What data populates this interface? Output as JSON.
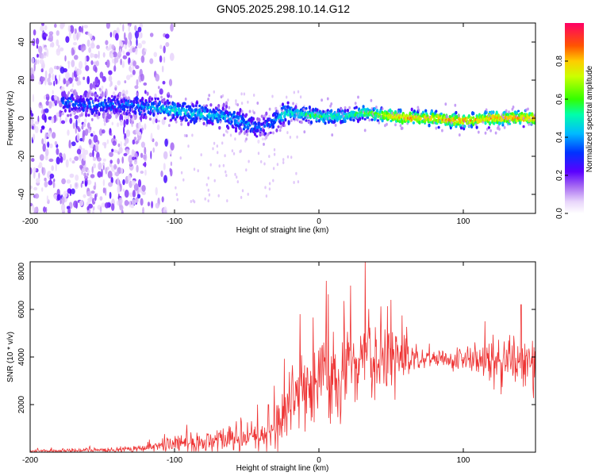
{
  "title": "GN05.2025.298.10.14.G12",
  "chart_data": [
    {
      "type": "heatmap",
      "name": "spectrogram",
      "title": "GN05.2025.298.10.14.G12",
      "xlabel": "Height of straight line (km)",
      "ylabel": "Frequency (Hz)",
      "xlim": [
        -200,
        150
      ],
      "ylim": [
        -50,
        50
      ],
      "xticks": [
        -200,
        -100,
        0,
        100
      ],
      "yticks": [
        -40,
        -20,
        0,
        20,
        40
      ],
      "colorbar": {
        "label": "Normalized spectral amplitude",
        "range": [
          0,
          1
        ],
        "ticks": [
          "0.0",
          "0.2",
          "0.4",
          "0.6",
          "0.8"
        ],
        "tick_values": [
          0.0,
          0.2,
          0.4,
          0.6,
          0.8
        ]
      },
      "ridge": {
        "x": [
          -175,
          -160,
          -140,
          -120,
          -110,
          -100,
          -90,
          -80,
          -70,
          -60,
          -50,
          -45,
          -40,
          -35,
          -30,
          -25,
          -20,
          -10,
          0,
          10,
          20,
          30,
          40,
          50,
          60,
          70,
          80,
          90,
          100,
          110,
          120,
          130,
          140,
          150
        ],
        "freq": [
          8,
          7,
          7,
          6,
          5,
          4,
          3,
          2,
          1,
          0,
          -3,
          -4,
          -5,
          -3,
          -1,
          2,
          3,
          2,
          1,
          1,
          1,
          3,
          2,
          1,
          0,
          0,
          0,
          -1,
          -1,
          -1,
          0,
          0,
          0,
          0
        ],
        "amplitude": [
          0.35,
          0.35,
          0.35,
          0.4,
          0.42,
          0.45,
          0.45,
          0.45,
          0.42,
          0.4,
          0.4,
          0.35,
          0.3,
          0.35,
          0.4,
          0.5,
          0.5,
          0.55,
          0.55,
          0.55,
          0.5,
          0.6,
          0.65,
          0.8,
          0.85,
          0.8,
          0.8,
          0.85,
          0.85,
          0.8,
          0.85,
          0.85,
          0.85,
          0.85
        ]
      },
      "noise_region": {
        "x_from": -200,
        "x_to": -110
      }
    },
    {
      "type": "line",
      "name": "snr",
      "xlabel": "Height of straight line (km)",
      "ylabel": "SNR (10 * v/v)",
      "xlim": [
        -200,
        150
      ],
      "ylim": [
        0,
        8000
      ],
      "xticks": [
        -200,
        -100,
        0,
        100
      ],
      "yticks": [
        2000,
        4000,
        6000,
        8000
      ],
      "color": "#ee3333",
      "envelope": {
        "x": [
          -200,
          -150,
          -120,
          -110,
          -100,
          -80,
          -60,
          -40,
          -30,
          -25,
          -20,
          -15,
          -10,
          -5,
          0,
          5,
          10,
          20,
          30,
          40,
          50,
          60,
          70,
          80,
          90,
          100,
          110,
          120,
          130,
          140,
          150
        ],
        "base": [
          50,
          80,
          150,
          250,
          350,
          450,
          550,
          700,
          900,
          1500,
          2200,
          2600,
          2800,
          3000,
          3100,
          3200,
          3300,
          3500,
          3700,
          3800,
          3900,
          4000,
          4000,
          4000,
          3900,
          3900,
          3900,
          3800,
          3600,
          3700,
          3700
        ],
        "amp": [
          120,
          150,
          250,
          400,
          500,
          700,
          900,
          1000,
          1500,
          1800,
          2200,
          2400,
          2500,
          2500,
          2600,
          2800,
          2800,
          2800,
          2800,
          2500,
          2200,
          1800,
          800,
          600,
          600,
          700,
          900,
          1300,
          1600,
          1800,
          1800
        ]
      },
      "peaks": [
        {
          "x": 32,
          "y": 8100
        },
        {
          "x": 5,
          "y": 7200
        },
        {
          "x": 22,
          "y": 7000
        },
        {
          "x": 50,
          "y": 6400
        },
        {
          "x": -13,
          "y": 5800
        },
        {
          "x": 140,
          "y": 6200
        },
        {
          "x": 115,
          "y": 5500
        },
        {
          "x": -35,
          "y": 2000
        }
      ]
    }
  ]
}
